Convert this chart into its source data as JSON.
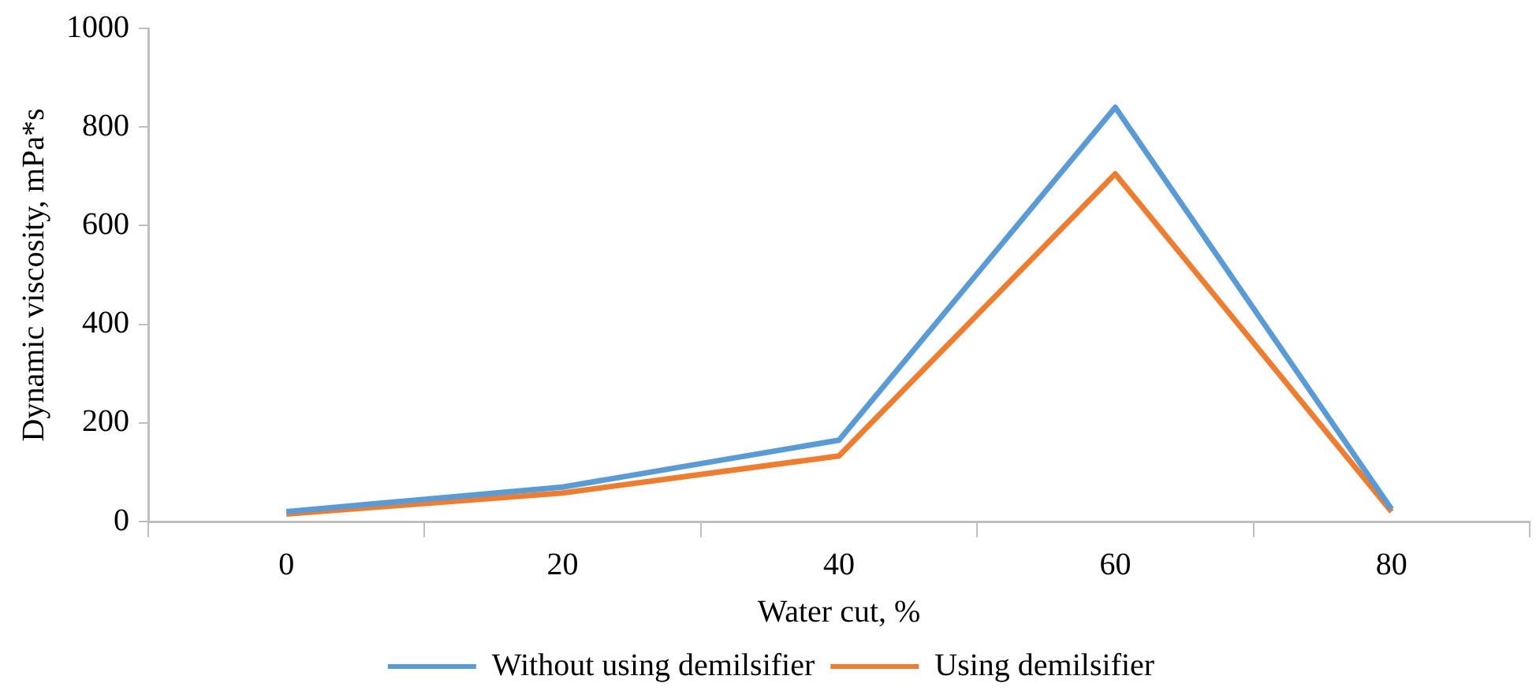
{
  "chart_data": {
    "type": "line",
    "xlabel": "Water cut, %",
    "ylabel": "Dynamic viscosity, mPa*s",
    "categories": [
      "0",
      "20",
      "40",
      "60",
      "80"
    ],
    "series": [
      {
        "name": "Without using demilsifier",
        "color": "#5b9bd5",
        "values": [
          20,
          70,
          165,
          840,
          25
        ]
      },
      {
        "name": "Using demilsifier",
        "color": "#ed7d31",
        "values": [
          15,
          58,
          133,
          705,
          20
        ]
      }
    ],
    "ylim": [
      0,
      1000
    ],
    "yticks": [
      0,
      200,
      400,
      600,
      800,
      1000
    ],
    "grid": false,
    "legend": "bottom",
    "marker": "none",
    "line_style": "solid"
  }
}
